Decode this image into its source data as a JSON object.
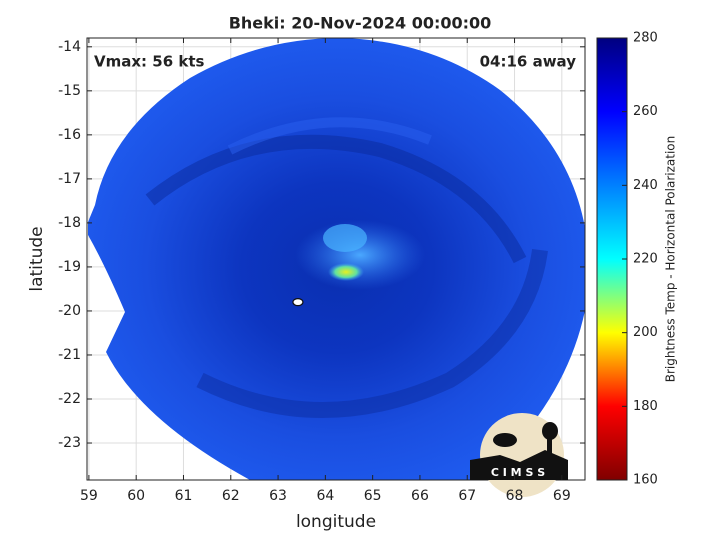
{
  "chart_data": {
    "type": "image",
    "title": "Bheki: 20-Nov-2024 00:00:00",
    "annotations": [
      "Vmax: 56 kts",
      "04:16 away"
    ],
    "xlabel": "longitude",
    "ylabel": "latitude",
    "xlim": [
      58.96,
      69.49
    ],
    "xticks": [
      59,
      60,
      61,
      62,
      63,
      64,
      65,
      66,
      67,
      68,
      69
    ],
    "ylim": [
      -23.84,
      -13.8
    ],
    "yticks": [
      -14,
      -15,
      -16,
      -17,
      -18,
      -19,
      -20,
      -21,
      -22,
      -23
    ],
    "grid": true,
    "storm_center": {
      "x": 63.42,
      "y": -19.8
    },
    "colorbar": {
      "label": "Brightness Temp - Horizontal Polarization",
      "lim": [
        160,
        280
      ],
      "ticks": [
        160,
        180,
        200,
        220,
        240,
        260,
        280
      ],
      "colormap": "jet"
    },
    "logo": "C I M S S"
  }
}
